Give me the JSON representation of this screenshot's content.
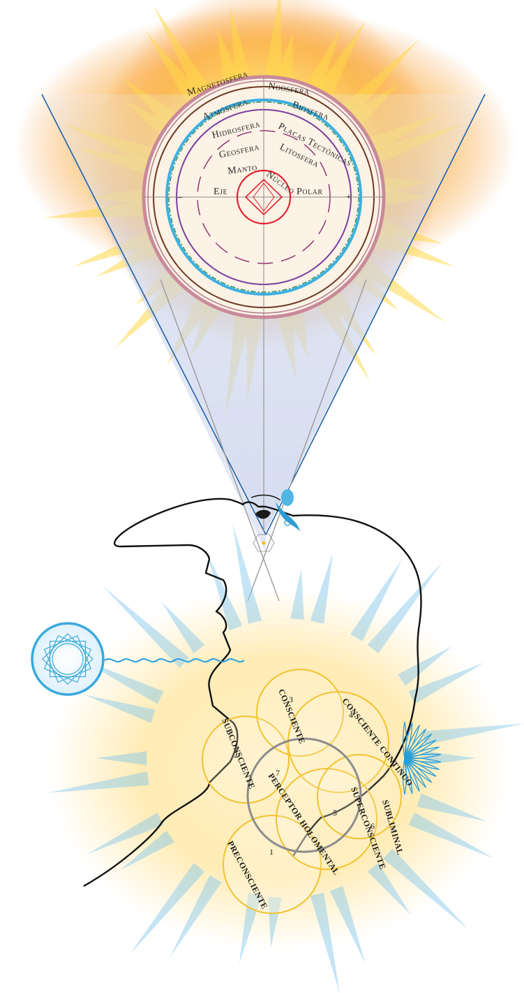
{
  "spheres": {
    "magnetosfera": "Magnetosfera",
    "noosfera": "Noosfera",
    "atmosfera": "Atmósfera",
    "biosfera": "Biosfera",
    "hidrosfera": "Hidrosfera",
    "placas": "Placas Tectónicas",
    "geosfera": "Geosfera",
    "litosfera": "Litosfera",
    "manto": "Manto",
    "nucleo": "Núcleo",
    "eje": "Eje",
    "polar": "Polar",
    "minus": "–",
    "plus": "+"
  },
  "mind": {
    "c1": {
      "num": "1",
      "label": "PRECONSCIENTE"
    },
    "c2": {
      "num": "2",
      "label": "SUBCONSCIENTE"
    },
    "c3": {
      "num": "3",
      "label": "CONSCIENTE"
    },
    "c4": {
      "num": "4",
      "label": "CONSCIENTE CONTINUO"
    },
    "c5": {
      "num": "5",
      "label": "SUPERCONSCIENTE"
    },
    "c6": {
      "num": "6",
      "label": "SUBLIMINAL"
    },
    "c7": {
      "num": "7",
      "label": "PERCEPTOR HOLOMENTAL"
    }
  },
  "colors": {
    "sun_core": "#ffd84a",
    "sun_orange": "#f59a30",
    "beam": "#c9d3ea",
    "beam_edge": "#1f5fa8",
    "head_glow": "#ffe7a8",
    "rays_blue": "#7fc6ea",
    "circle_yellow": "#f2c230",
    "perceptor_gray": "#8c8c8c",
    "core_red": "#e0202a",
    "purple": "#7a3fa0",
    "brown": "#6b3a22",
    "cyan": "#3cb0e0"
  }
}
